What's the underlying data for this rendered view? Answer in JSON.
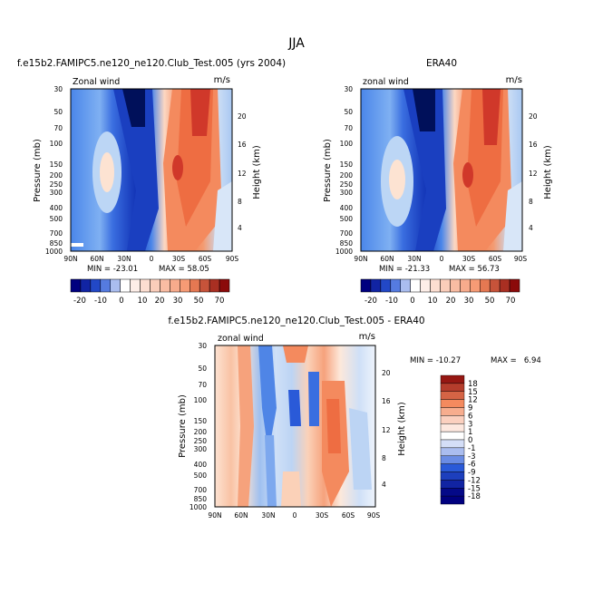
{
  "page": {
    "season": "JJA",
    "units_label": "m/s",
    "field_label_1": "Zonal wind",
    "field_label_2": "zonal wind",
    "pressure_axis_label": "Pressure (mb)",
    "height_axis_label": "Height (km)"
  },
  "colors": {
    "neg_dark": "#00007f",
    "neg_mid": "#2a5ad8",
    "neg_light": "#bcd6f5",
    "neutral": "#ffffff",
    "pos_light": "#fdd5bf",
    "pos_mid": "#f48a5e",
    "pos_dark": "#8b0a0a"
  },
  "chart_data": [
    {
      "type": "heatmap",
      "title": "f.e15b2.FAMIPC5.ne120_ne120.Club_Test.005 (yrs 2004)",
      "field": "Zonal wind",
      "units": "m/s",
      "xlabel": "",
      "ylabel": "Pressure (mb)",
      "y2label": "Height (km)",
      "x_ticks": [
        "90N",
        "60N",
        "30N",
        "0",
        "30S",
        "60S",
        "90S"
      ],
      "y_ticks": [
        "30",
        "50",
        "70",
        "100",
        "150",
        "200",
        "250",
        "300",
        "400",
        "500",
        "700",
        "850",
        "1000"
      ],
      "y2_ticks": [
        "20",
        "16",
        "12",
        "8",
        "4"
      ],
      "xlim": [
        90,
        -90
      ],
      "ylim": [
        1000,
        30
      ],
      "min": -23.01,
      "max": 58.05,
      "min_label": "MIN = -23.01",
      "max_label": "MAX = 58.05",
      "colorbar_levels": [
        -25,
        -20,
        -15,
        -10,
        -5,
        0,
        5,
        10,
        15,
        20,
        25,
        30,
        40,
        50,
        60,
        70
      ],
      "colorbar_labels": [
        "-20",
        "-10",
        "0",
        "10",
        "20",
        "30",
        "50",
        "70"
      ]
    },
    {
      "type": "heatmap",
      "title": "ERA40",
      "field": "zonal wind",
      "units": "m/s",
      "xlabel": "",
      "ylabel": "Pressure (mb)",
      "y2label": "Height (km)",
      "x_ticks": [
        "90N",
        "60N",
        "30N",
        "0",
        "30S",
        "60S",
        "90S"
      ],
      "y_ticks": [
        "30",
        "50",
        "70",
        "100",
        "150",
        "200",
        "250",
        "300",
        "400",
        "500",
        "700",
        "850",
        "1000"
      ],
      "y2_ticks": [
        "20",
        "16",
        "12",
        "8",
        "4"
      ],
      "xlim": [
        90,
        -90
      ],
      "ylim": [
        1000,
        30
      ],
      "min": -21.33,
      "max": 56.73,
      "min_label": "MIN = -21.33",
      "max_label": "MAX = 56.73",
      "colorbar_levels": [
        -25,
        -20,
        -15,
        -10,
        -5,
        0,
        5,
        10,
        15,
        20,
        25,
        30,
        40,
        50,
        60,
        70
      ],
      "colorbar_labels": [
        "-20",
        "-10",
        "0",
        "10",
        "20",
        "30",
        "50",
        "70"
      ]
    },
    {
      "type": "heatmap",
      "title": "f.e15b2.FAMIPC5.ne120_ne120.Club_Test.005 - ERA40",
      "field": "zonal wind",
      "units": "m/s",
      "xlabel": "",
      "ylabel": "Pressure (mb)",
      "y2label": "Height (km)",
      "x_ticks": [
        "90N",
        "60N",
        "30N",
        "0",
        "30S",
        "60S",
        "90S"
      ],
      "y_ticks": [
        "30",
        "50",
        "70",
        "100",
        "150",
        "200",
        "250",
        "300",
        "400",
        "500",
        "700",
        "850",
        "1000"
      ],
      "y2_ticks": [
        "20",
        "16",
        "12",
        "8",
        "4"
      ],
      "xlim": [
        90,
        -90
      ],
      "ylim": [
        1000,
        30
      ],
      "min": -10.27,
      "max": 6.94,
      "min_label": "MIN = -10.27",
      "max_label": "MAX =   6.94",
      "colorbar_levels": [
        18,
        15,
        12,
        9,
        6,
        3,
        1,
        0,
        -1,
        -3,
        -6,
        -9,
        -12,
        -15,
        -18
      ],
      "colorbar_labels": [
        "18",
        "15",
        "12",
        "9",
        "6",
        "3",
        "1",
        "0",
        "-1",
        "-3",
        "-6",
        "-9",
        "-12",
        "-15",
        "-18"
      ]
    }
  ]
}
